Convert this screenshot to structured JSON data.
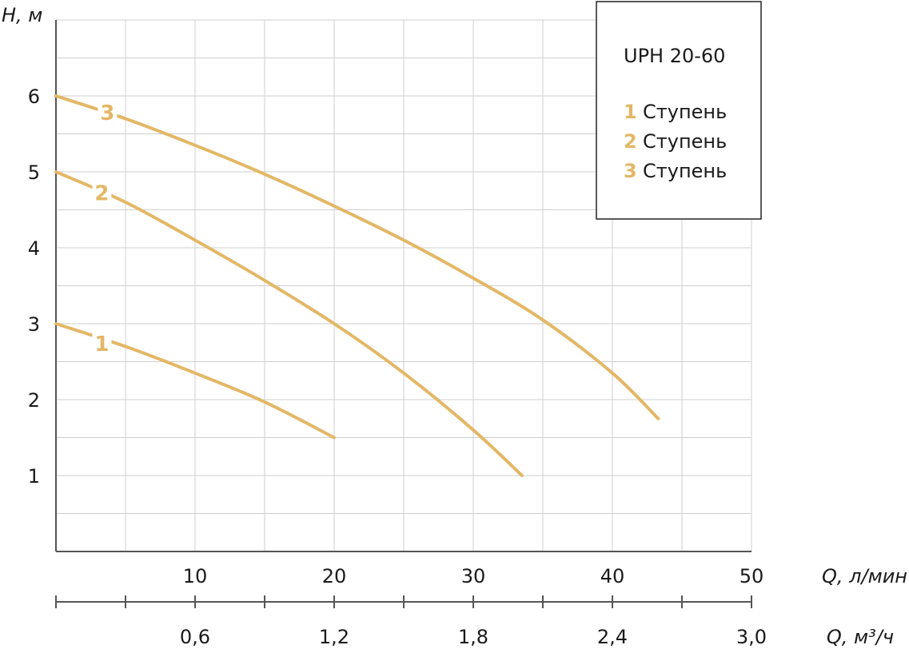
{
  "chart_data": {
    "type": "line",
    "ylabel": "H, м",
    "xlabel": "Q, л/мин",
    "x2label": "Q, м³/ч",
    "xlim": [
      0,
      50
    ],
    "ylim": [
      0,
      7
    ],
    "grid": true,
    "x_ticks": [
      10,
      20,
      30,
      40,
      50
    ],
    "x_tick_labels": [
      "10",
      "20",
      "30",
      "40",
      "50"
    ],
    "y_ticks": [
      1,
      2,
      3,
      4,
      5,
      6
    ],
    "y_tick_labels": [
      "1",
      "2",
      "3",
      "4",
      "5",
      "6"
    ],
    "x2_ticks": [
      0.6,
      1.2,
      1.8,
      2.4,
      3.0
    ],
    "x2_tick_labels": [
      "0,6",
      "1,2",
      "1,8",
      "2,4",
      "3,0"
    ],
    "x2_max": 3.0,
    "series": [
      {
        "label": "1",
        "color": "#e3b766",
        "x": [
          0,
          5,
          10,
          15,
          20
        ],
        "y": [
          3.0,
          2.7,
          2.35,
          1.97,
          1.5
        ],
        "label_at": [
          3.3,
          2.75
        ]
      },
      {
        "label": "2",
        "color": "#e3b766",
        "x": [
          0,
          5,
          10,
          15,
          20,
          25,
          30,
          33.5
        ],
        "y": [
          5.0,
          4.6,
          4.1,
          3.57,
          3.0,
          2.35,
          1.6,
          1.0
        ],
        "label_at": [
          3.3,
          4.73
        ]
      },
      {
        "label": "3",
        "color": "#e3b766",
        "x": [
          0,
          5,
          10,
          15,
          20,
          25,
          30,
          35,
          40,
          43.3
        ],
        "y": [
          6.0,
          5.7,
          5.35,
          4.97,
          4.55,
          4.1,
          3.6,
          3.05,
          2.35,
          1.75
        ],
        "label_at": [
          3.7,
          5.79
        ]
      }
    ],
    "legend": {
      "placement": "top-right",
      "title": "UPH 20-60",
      "items": [
        {
          "num": "1",
          "text": "Ступень"
        },
        {
          "num": "2",
          "text": "Ступень"
        },
        {
          "num": "3",
          "text": "Ступень"
        }
      ]
    }
  }
}
